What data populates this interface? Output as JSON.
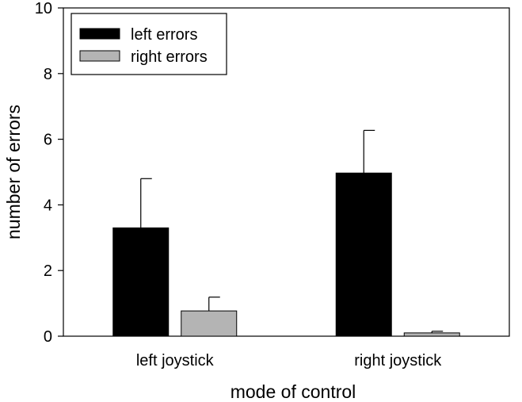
{
  "chart_data": {
    "type": "bar",
    "title": "",
    "xlabel": "mode of control",
    "ylabel": "number of errors",
    "categories": [
      "left joystick",
      "right joystick"
    ],
    "series": [
      {
        "name": "left errors",
        "values": [
          3.3,
          4.97
        ],
        "errors": [
          1.5,
          1.3
        ],
        "color": "#000000"
      },
      {
        "name": "right errors",
        "values": [
          0.77,
          0.1
        ],
        "errors": [
          0.42,
          0.05
        ],
        "color": "#b4b4b4"
      }
    ],
    "ylim": [
      0,
      10
    ],
    "yticks": [
      "0",
      "2",
      "4",
      "6",
      "8",
      "10"
    ],
    "grid": false,
    "legend_position": "top-left"
  }
}
